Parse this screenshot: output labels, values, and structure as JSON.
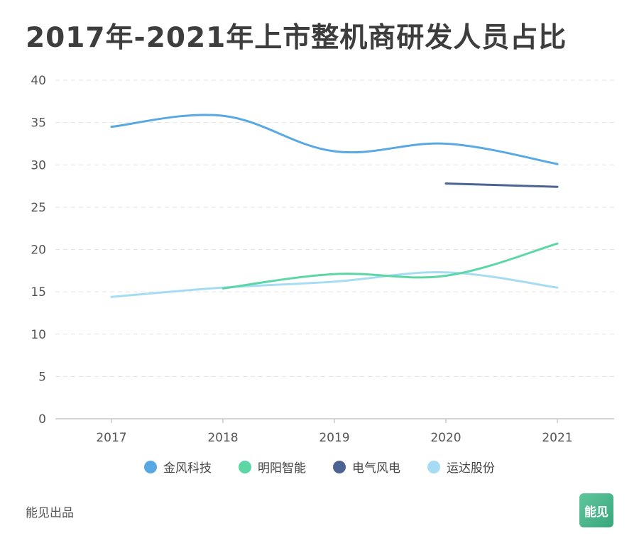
{
  "title": "2017年-2021年上市整机商研发人员占比",
  "chart_data": {
    "type": "line",
    "title": "2017年-2021年上市整机商研发人员占比",
    "categories": [
      "2017",
      "2018",
      "2019",
      "2020",
      "2021"
    ],
    "ylim": [
      0,
      40
    ],
    "yticks": [
      0,
      5,
      10,
      15,
      20,
      25,
      30,
      35,
      40
    ],
    "grid": true,
    "legend_position": "bottom",
    "series": [
      {
        "name": "金风科技",
        "color": "#58a8e4",
        "values": [
          34.5,
          35.8,
          31.6,
          32.5,
          30.1
        ]
      },
      {
        "name": "明阳智能",
        "color": "#5dd6a6",
        "values": [
          null,
          15.4,
          17.1,
          16.9,
          20.7
        ]
      },
      {
        "name": "电气风电",
        "color": "#4d6394",
        "values": [
          null,
          null,
          null,
          27.8,
          27.4
        ]
      },
      {
        "name": "运达股份",
        "color": "#a6dcf3",
        "values": [
          14.4,
          15.5,
          16.2,
          17.3,
          15.5
        ]
      }
    ]
  },
  "footer": {
    "source": "能见出品",
    "logo_text": "能见"
  }
}
